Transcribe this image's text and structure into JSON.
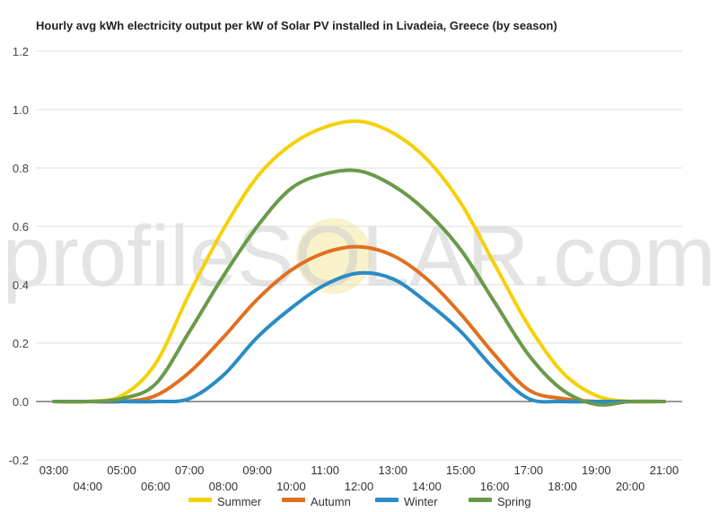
{
  "watermark": "profileSOLAR.com",
  "chart_data": {
    "type": "line",
    "title": "Hourly avg kWh electricity output per kW of Solar PV installed in Livadeia, Greece (by season)",
    "xlabel": "",
    "ylabel": "",
    "ylim": [
      -0.2,
      1.2
    ],
    "y_ticks": [
      "-0.2",
      "0.0",
      "0.2",
      "0.4",
      "0.6",
      "0.8",
      "1.0",
      "1.2"
    ],
    "x_ticks": [
      "03:00",
      "04:00",
      "05:00",
      "06:00",
      "07:00",
      "08:00",
      "09:00",
      "10:00",
      "11:00",
      "12:00",
      "13:00",
      "14:00",
      "15:00",
      "16:00",
      "17:00",
      "18:00",
      "19:00",
      "20:00",
      "21:00"
    ],
    "x": [
      "03:00",
      "04:00",
      "05:00",
      "06:00",
      "07:00",
      "08:00",
      "09:00",
      "10:00",
      "11:00",
      "12:00",
      "13:00",
      "14:00",
      "15:00",
      "16:00",
      "17:00",
      "18:00",
      "19:00",
      "20:00",
      "21:00"
    ],
    "grid": true,
    "legend_position": "bottom",
    "series": [
      {
        "name": "Summer",
        "color": "#f5d10a",
        "values": [
          0,
          0,
          0.02,
          0.13,
          0.37,
          0.59,
          0.77,
          0.88,
          0.94,
          0.96,
          0.92,
          0.83,
          0.68,
          0.47,
          0.26,
          0.1,
          0.02,
          0,
          0
        ]
      },
      {
        "name": "Autumn",
        "color": "#e07020",
        "values": [
          0,
          0,
          0,
          0.02,
          0.1,
          0.22,
          0.35,
          0.45,
          0.51,
          0.53,
          0.5,
          0.42,
          0.3,
          0.16,
          0.04,
          0.01,
          0,
          0,
          0
        ]
      },
      {
        "name": "Winter",
        "color": "#2a8cc4",
        "values": [
          0,
          0,
          0,
          0,
          0.01,
          0.09,
          0.22,
          0.32,
          0.4,
          0.44,
          0.42,
          0.34,
          0.24,
          0.11,
          0.01,
          0,
          0,
          0,
          0
        ]
      },
      {
        "name": "Spring",
        "color": "#6a9a4a",
        "values": [
          0,
          0,
          0.01,
          0.06,
          0.24,
          0.43,
          0.6,
          0.73,
          0.78,
          0.79,
          0.74,
          0.65,
          0.52,
          0.34,
          0.16,
          0.04,
          -0.01,
          0,
          0
        ]
      }
    ]
  }
}
